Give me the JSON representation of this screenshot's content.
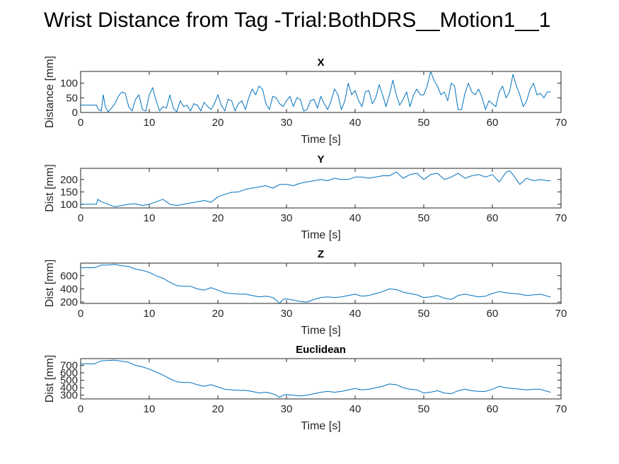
{
  "figure": {
    "title": "Wrist Distance from Tag -Trial:BothDRS__Motion1__1"
  },
  "colors": {
    "line": "#0072BD",
    "axis": "#262626",
    "background": "#ffffff"
  },
  "chart_data": [
    {
      "type": "line",
      "title": "X",
      "xlabel": "Time [s]",
      "ylabel": "Distance [mm]",
      "xlim": [
        0,
        70
      ],
      "ylim": [
        0,
        140
      ],
      "xticks": [
        0,
        10,
        20,
        30,
        40,
        50,
        60,
        70
      ],
      "yticks": [
        0,
        50,
        100
      ],
      "grid": false,
      "series": [
        {
          "x": [
            0,
            2.3,
            2.6,
            3.0,
            3.3,
            3.6,
            4.0,
            4.5,
            5.0,
            5.5,
            6.0,
            6.5,
            7.0,
            7.5,
            8.0,
            8.5,
            9.0,
            9.5,
            10.0,
            10.5,
            11.0,
            11.5,
            12.0,
            12.5,
            13.0,
            13.5,
            14.0,
            14.5,
            15.0,
            15.5,
            16.0,
            16.5,
            17.0,
            17.5,
            18.0,
            18.5,
            19.0,
            19.5,
            20.0,
            20.5,
            21.0,
            21.5,
            22.0,
            22.5,
            23.0,
            23.5,
            24.0,
            24.5,
            25.0,
            25.5,
            26.0,
            26.5,
            27.0,
            27.5,
            28.0,
            28.5,
            29.0,
            29.5,
            30.0,
            30.5,
            31.0,
            31.5,
            32.0,
            32.5,
            33.0,
            33.5,
            34.0,
            34.5,
            35.0,
            35.5,
            36.0,
            36.5,
            37.0,
            37.5,
            38.0,
            38.5,
            39.0,
            39.5,
            40.0,
            40.5,
            41.0,
            41.5,
            42.0,
            42.5,
            43.0,
            43.5,
            44.0,
            44.5,
            45.0,
            45.5,
            46.0,
            46.5,
            47.0,
            47.5,
            48.0,
            48.5,
            49.0,
            49.5,
            50.0,
            50.5,
            51.0,
            51.5,
            52.0,
            52.5,
            53.0,
            53.5,
            54.0,
            54.5,
            55.0,
            55.5,
            56.0,
            56.5,
            57.0,
            57.5,
            58.0,
            58.5,
            59.0,
            59.5,
            60.0,
            60.5,
            61.0,
            61.5,
            62.0,
            62.5,
            63.0,
            63.5,
            64.0,
            64.5,
            65.0,
            65.5,
            66.0,
            66.5,
            67.0,
            67.5,
            68.0,
            68.5
          ],
          "y": [
            25,
            25,
            10,
            5,
            60,
            20,
            2,
            15,
            30,
            55,
            70,
            65,
            20,
            5,
            45,
            60,
            10,
            5,
            60,
            85,
            40,
            5,
            20,
            15,
            60,
            15,
            2,
            40,
            20,
            25,
            5,
            30,
            25,
            5,
            35,
            20,
            10,
            30,
            60,
            25,
            5,
            45,
            40,
            5,
            30,
            40,
            10,
            50,
            80,
            60,
            90,
            80,
            30,
            10,
            55,
            50,
            30,
            20,
            40,
            55,
            20,
            50,
            45,
            5,
            10,
            40,
            45,
            15,
            55,
            30,
            10,
            40,
            80,
            60,
            10,
            40,
            100,
            60,
            75,
            40,
            20,
            70,
            75,
            30,
            50,
            95,
            60,
            20,
            60,
            110,
            60,
            25,
            45,
            70,
            20,
            60,
            80,
            60,
            60,
            90,
            140,
            110,
            90,
            60,
            70,
            40,
            100,
            90,
            10,
            10,
            65,
            100,
            70,
            60,
            80,
            50,
            10,
            40,
            30,
            20,
            70,
            90,
            50,
            70,
            130,
            90,
            60,
            20,
            40,
            80,
            100,
            60,
            65,
            50,
            70,
            70
          ]
        }
      ]
    },
    {
      "type": "line",
      "title": "Y",
      "xlabel": "Time [s]",
      "ylabel": "Dist [mm]",
      "xlim": [
        0,
        70
      ],
      "ylim": [
        85,
        245
      ],
      "xticks": [
        0,
        10,
        20,
        30,
        40,
        50,
        60,
        70
      ],
      "yticks": [
        100,
        150,
        200
      ],
      "grid": false,
      "series": [
        {
          "x": [
            0,
            2.3,
            2.5,
            3,
            4,
            5,
            6,
            7,
            8,
            9,
            10,
            11,
            12,
            13,
            14,
            15,
            16,
            17,
            18,
            19,
            20,
            21,
            22,
            23,
            24,
            25,
            26,
            27,
            28,
            29,
            30,
            31,
            32,
            33,
            34,
            35,
            36,
            37,
            38,
            39,
            40,
            41,
            42,
            43,
            44,
            45,
            46,
            47,
            48,
            49,
            50,
            51,
            52,
            53,
            54,
            55,
            56,
            57,
            58,
            59,
            60,
            61,
            62,
            62.5,
            63,
            64,
            65,
            66,
            67,
            68,
            68.5
          ],
          "y": [
            100,
            100,
            120,
            110,
            100,
            90,
            95,
            100,
            102,
            95,
            100,
            110,
            120,
            100,
            95,
            100,
            105,
            110,
            115,
            108,
            130,
            140,
            148,
            150,
            160,
            165,
            170,
            175,
            165,
            180,
            180,
            175,
            185,
            190,
            195,
            200,
            195,
            205,
            200,
            200,
            210,
            210,
            205,
            210,
            215,
            215,
            230,
            205,
            220,
            225,
            200,
            220,
            225,
            200,
            210,
            225,
            205,
            215,
            220,
            210,
            220,
            190,
            230,
            235,
            220,
            180,
            205,
            195,
            200,
            195,
            195
          ]
        }
      ]
    },
    {
      "type": "line",
      "title": "Z",
      "xlabel": "Time [s]",
      "ylabel": "Dist [mm]",
      "xlim": [
        0,
        70
      ],
      "ylim": [
        180,
        790
      ],
      "xticks": [
        0,
        10,
        20,
        30,
        40,
        50,
        60,
        70
      ],
      "yticks": [
        200,
        400,
        600
      ],
      "grid": false,
      "series": [
        {
          "x": [
            0,
            2,
            3,
            4,
            5,
            6,
            7,
            8,
            9,
            10,
            11,
            12,
            13,
            14,
            15,
            16,
            17,
            18,
            19,
            20,
            21,
            22,
            23,
            24,
            25,
            26,
            27,
            28,
            28.5,
            29,
            29.5,
            30,
            31,
            32,
            33,
            34,
            35,
            36,
            37,
            38,
            39,
            40,
            41,
            42,
            43,
            44,
            45,
            46,
            47,
            48,
            49,
            50,
            51,
            52,
            53,
            54,
            55,
            56,
            57,
            58,
            59,
            60,
            61,
            62,
            63,
            64,
            65,
            66,
            67,
            68,
            68.5
          ],
          "y": [
            720,
            720,
            760,
            760,
            770,
            750,
            740,
            700,
            680,
            650,
            600,
            560,
            500,
            450,
            440,
            440,
            400,
            380,
            420,
            380,
            340,
            330,
            320,
            320,
            300,
            280,
            290,
            270,
            230,
            180,
            240,
            250,
            230,
            210,
            200,
            240,
            270,
            280,
            270,
            280,
            300,
            320,
            290,
            300,
            330,
            360,
            400,
            390,
            350,
            330,
            310,
            270,
            280,
            300,
            260,
            240,
            300,
            320,
            300,
            280,
            290,
            330,
            360,
            340,
            330,
            320,
            300,
            310,
            320,
            290,
            280
          ]
        }
      ]
    },
    {
      "type": "line",
      "title": "Euclidean",
      "xlabel": "Time [s]",
      "ylabel": "Dist [mm]",
      "xlim": [
        0,
        70
      ],
      "ylim": [
        250,
        790
      ],
      "xticks": [
        0,
        10,
        20,
        30,
        40,
        50,
        60,
        70
      ],
      "yticks": [
        300,
        400,
        500,
        600,
        700
      ],
      "grid": false,
      "series": [
        {
          "x": [
            0,
            2,
            3,
            4,
            5,
            6,
            7,
            8,
            9,
            10,
            11,
            12,
            13,
            14,
            15,
            16,
            17,
            18,
            19,
            20,
            21,
            22,
            23,
            24,
            25,
            26,
            27,
            28,
            28.5,
            29,
            29.5,
            30,
            31,
            32,
            33,
            34,
            35,
            36,
            37,
            38,
            39,
            40,
            41,
            42,
            43,
            44,
            45,
            46,
            47,
            48,
            49,
            50,
            51,
            52,
            53,
            54,
            55,
            56,
            57,
            58,
            59,
            60,
            61,
            62,
            63,
            64,
            65,
            66,
            67,
            68,
            68.5
          ],
          "y": [
            720,
            720,
            760,
            765,
            770,
            755,
            740,
            700,
            680,
            650,
            610,
            570,
            520,
            480,
            470,
            470,
            440,
            420,
            440,
            410,
            380,
            370,
            365,
            365,
            350,
            330,
            340,
            320,
            300,
            270,
            300,
            310,
            300,
            290,
            300,
            320,
            340,
            350,
            340,
            350,
            370,
            390,
            370,
            380,
            400,
            420,
            450,
            440,
            400,
            380,
            370,
            330,
            340,
            360,
            330,
            320,
            360,
            380,
            360,
            350,
            350,
            380,
            420,
            400,
            390,
            380,
            370,
            380,
            380,
            350,
            340
          ]
        }
      ]
    }
  ]
}
